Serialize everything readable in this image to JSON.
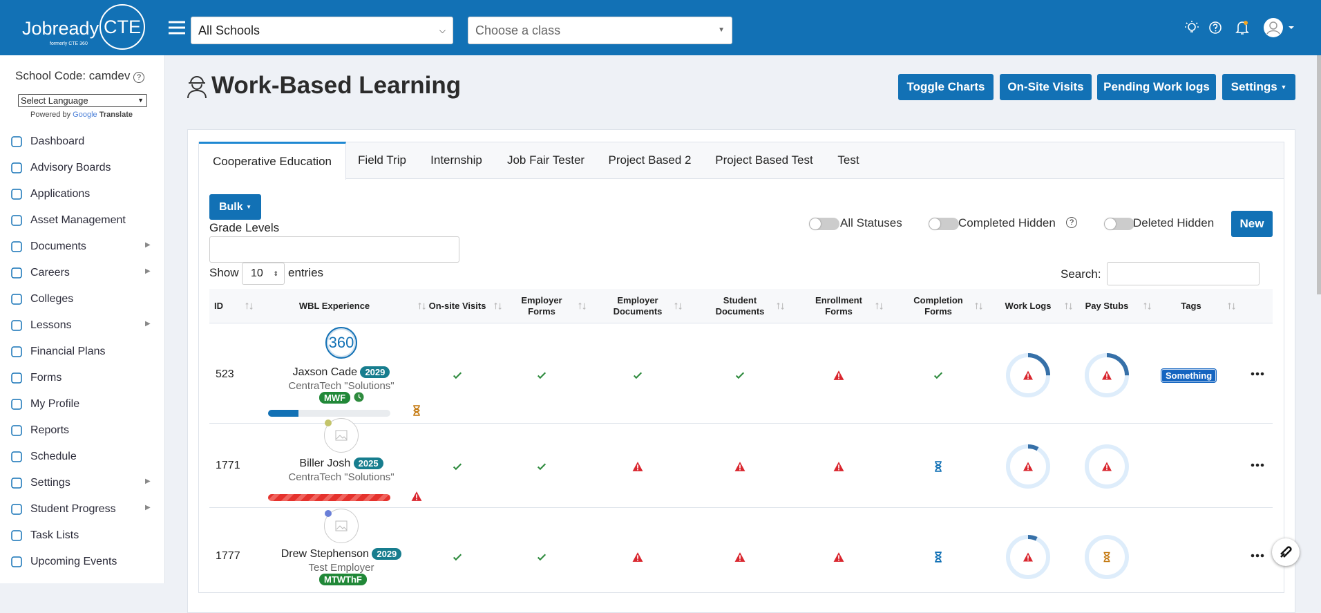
{
  "header": {
    "logo": "Jobready",
    "logo_cte": "CTE",
    "logo_sub": "formerly CTE 360",
    "school_select": "All Schools",
    "class_placeholder": "Choose a class"
  },
  "sidebar": {
    "school_code": "School Code: camdev",
    "language": "Select Language",
    "powered_by": "Powered by",
    "google": "Google",
    "translate": "Translate",
    "nav": [
      "Dashboard",
      "Advisory Boards",
      "Applications",
      "Asset Management",
      "Documents",
      "Careers",
      "Colleges",
      "Lessons",
      "Financial Plans",
      "Forms",
      "My Profile",
      "Reports",
      "Schedule",
      "Settings",
      "Student Progress",
      "Task Lists",
      "Upcoming Events"
    ]
  },
  "page": {
    "title": "Work-Based Learning",
    "buttons": [
      "Toggle Charts",
      "On-Site Visits",
      "Pending Work logs",
      "Settings"
    ]
  },
  "tabs": [
    "Cooperative Education",
    "Field Trip",
    "Internship",
    "Job Fair Tester",
    "Project Based 2",
    "Project Based Test",
    "Test"
  ],
  "controls": {
    "bulk": "Bulk",
    "grade_levels": "Grade Levels",
    "toggles": [
      "All Statuses",
      "Completed Hidden",
      "Deleted Hidden"
    ],
    "new": "New",
    "show": "Show",
    "entries_value": "10",
    "entries": "entries",
    "search": "Search:"
  },
  "table": {
    "columns": [
      "ID",
      "WBL Experience",
      "On-site Visits",
      "Employer Forms",
      "Employer Documents",
      "Student Documents",
      "Enrollment Forms",
      "Completion Forms",
      "Work Logs",
      "Pay Stubs",
      "Tags"
    ],
    "rows": [
      {
        "id": "523",
        "name": "Jaxson Cade",
        "year": "2029",
        "employer": "CentraTech \"Solutions\"",
        "schedule": "MWF",
        "tag": "Something",
        "avatar": "360"
      },
      {
        "id": "1771",
        "name": "Biller Josh",
        "year": "2025",
        "employer": "CentraTech \"Solutions\""
      },
      {
        "id": "1777",
        "name": "Drew Stephenson",
        "year": "2029",
        "employer": "Test Employer",
        "schedule": "MTWThF"
      }
    ]
  }
}
